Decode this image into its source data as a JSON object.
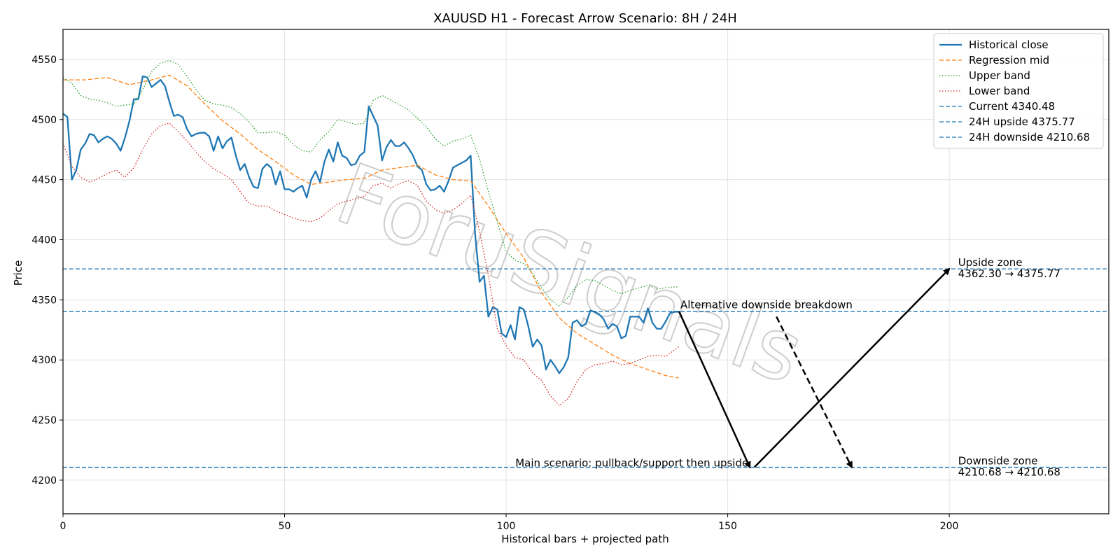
{
  "chart_data": {
    "type": "line",
    "title": "XAUUSD H1 - Forecast Arrow Scenario: 8H / 24H",
    "xlabel": "Historical bars + projected path",
    "ylabel": "Price",
    "xlim": [
      0,
      236
    ],
    "ylim": [
      4172,
      4575
    ],
    "x_ticks": [
      0,
      50,
      100,
      150,
      200
    ],
    "y_ticks": [
      4200,
      4250,
      4300,
      4350,
      4400,
      4450,
      4500,
      4550
    ],
    "grid": true,
    "legend_position": "top-right",
    "watermark": "ForuSignals",
    "colors": {
      "historical": "#1f77b4",
      "regression": "#ff7f0e",
      "upper": "#2ca02c",
      "lower": "#d62728",
      "hline": "#1f77b4",
      "arrow": "#000000"
    },
    "series": [
      {
        "name": "Historical close",
        "style": "solid",
        "x": [
          0,
          1,
          2,
          3,
          4,
          5,
          6,
          7,
          8,
          9,
          10,
          11,
          12,
          13,
          14,
          15,
          16,
          17,
          18,
          19,
          20,
          21,
          22,
          23,
          24,
          25,
          26,
          27,
          28,
          29,
          30,
          31,
          32,
          33,
          34,
          35,
          36,
          37,
          38,
          39,
          40,
          41,
          42,
          43,
          44,
          45,
          46,
          47,
          48,
          49,
          50,
          51,
          52,
          53,
          54,
          55,
          56,
          57,
          58,
          59,
          60,
          61,
          62,
          63,
          64,
          65,
          66,
          67,
          68,
          69,
          70,
          71,
          72,
          73,
          74,
          75,
          76,
          77,
          78,
          79,
          80,
          81,
          82,
          83,
          84,
          85,
          86,
          87,
          88,
          89,
          90,
          91,
          92,
          93,
          94,
          95,
          96,
          97,
          98,
          99,
          100,
          101,
          102,
          103,
          104,
          105,
          106,
          107,
          108,
          109,
          110,
          111,
          112,
          113,
          114,
          115,
          116,
          117,
          118,
          119,
          120,
          121,
          122,
          123,
          124,
          125,
          126,
          127,
          128,
          129,
          130,
          131,
          132,
          133,
          134,
          135,
          136,
          137,
          138,
          139
        ],
        "values": [
          4505,
          4502,
          4450,
          4458,
          4475,
          4480,
          4488,
          4487,
          4481,
          4484,
          4486,
          4484,
          4480,
          4474,
          4485,
          4499,
          4517,
          4517,
          4536,
          4535,
          4527,
          4530,
          4533,
          4528,
          4515,
          4503,
          4504,
          4502,
          4492,
          4486,
          4488,
          4489,
          4489,
          4486,
          4474,
          4486,
          4476,
          4482,
          4485,
          4470,
          4458,
          4463,
          4452,
          4444,
          4443,
          4459,
          4463,
          4460,
          4446,
          4457,
          4442,
          4442,
          4440,
          4443,
          4445,
          4435,
          4450,
          4457,
          4448,
          4465,
          4475,
          4465,
          4481,
          4470,
          4468,
          4462,
          4463,
          4470,
          4473,
          4511,
          4503,
          4495,
          4466,
          4477,
          4483,
          4478,
          4478,
          4481,
          4476,
          4470,
          4461,
          4458,
          4446,
          4441,
          4442,
          4445,
          4440,
          4449,
          4460,
          4462,
          4464,
          4466,
          4470,
          4405,
          4365,
          4370,
          4336,
          4344,
          4342,
          4322,
          4319,
          4329,
          4317,
          4344,
          4342,
          4328,
          4311,
          4317,
          4312,
          4292,
          4300,
          4295,
          4289,
          4294,
          4302,
          4331,
          4333,
          4328,
          4330,
          4341,
          4340,
          4338,
          4334,
          4326,
          4330,
          4328,
          4318,
          4320,
          4336,
          4336,
          4336,
          4331,
          4343,
          4331,
          4326,
          4326,
          4332,
          4339,
          4340,
          4340
        ]
      },
      {
        "name": "Regression mid",
        "style": "dashed",
        "x": [
          0,
          5,
          10,
          15,
          20,
          24,
          28,
          32,
          36,
          40,
          44,
          48,
          52,
          56,
          60,
          64,
          68,
          72,
          76,
          80,
          84,
          88,
          92,
          96,
          100,
          104,
          108,
          112,
          116,
          120,
          124,
          128,
          132,
          136,
          139
        ],
        "values": [
          4533,
          4533,
          4535,
          4529,
          4533,
          4537,
          4528,
          4513,
          4499,
          4488,
          4475,
          4465,
          4454,
          4446,
          4448,
          4450,
          4451,
          4458,
          4460,
          4462,
          4454,
          4450,
          4449,
          4428,
          4405,
          4385,
          4356,
          4335,
          4322,
          4313,
          4304,
          4297,
          4292,
          4287,
          4285
        ]
      },
      {
        "name": "Upper band",
        "style": "dotted",
        "x": [
          0,
          2,
          4,
          6,
          8,
          10,
          12,
          14,
          16,
          18,
          20,
          22,
          24,
          26,
          28,
          30,
          32,
          34,
          36,
          38,
          40,
          42,
          44,
          46,
          48,
          50,
          52,
          54,
          56,
          58,
          60,
          62,
          64,
          66,
          68,
          70,
          72,
          74,
          76,
          78,
          80,
          82,
          84,
          86,
          88,
          90,
          92,
          94,
          96,
          98,
          100,
          102,
          104,
          106,
          108,
          110,
          112,
          114,
          116,
          118,
          120,
          122,
          124,
          126,
          128,
          130,
          132,
          134,
          136,
          139
        ],
        "values": [
          4535,
          4530,
          4520,
          4517,
          4516,
          4514,
          4511,
          4512,
          4513,
          4525,
          4540,
          4547,
          4549,
          4546,
          4536,
          4525,
          4516,
          4513,
          4512,
          4510,
          4505,
          4498,
          4489,
          4489,
          4490,
          4487,
          4479,
          4474,
          4473,
          4483,
          4490,
          4500,
          4498,
          4496,
          4497,
          4516,
          4520,
          4516,
          4512,
          4508,
          4501,
          4494,
          4484,
          4478,
          4482,
          4484,
          4487,
          4467,
          4440,
          4415,
          4390,
          4383,
          4380,
          4372,
          4360,
          4350,
          4345,
          4352,
          4362,
          4367,
          4366,
          4362,
          4358,
          4355,
          4358,
          4360,
          4362,
          4359,
          4360,
          4361
        ]
      },
      {
        "name": "Lower band",
        "style": "dotted",
        "x": [
          0,
          2,
          4,
          6,
          8,
          10,
          12,
          14,
          16,
          18,
          20,
          22,
          24,
          26,
          28,
          30,
          32,
          34,
          36,
          38,
          40,
          42,
          44,
          46,
          48,
          50,
          52,
          54,
          56,
          58,
          60,
          62,
          64,
          66,
          68,
          70,
          72,
          74,
          76,
          78,
          80,
          82,
          84,
          86,
          88,
          90,
          92,
          94,
          96,
          98,
          100,
          102,
          104,
          106,
          108,
          110,
          112,
          114,
          116,
          118,
          120,
          122,
          124,
          126,
          128,
          130,
          132,
          134,
          136,
          139
        ],
        "values": [
          4480,
          4461,
          4452,
          4448,
          4451,
          4455,
          4458,
          4452,
          4460,
          4475,
          4488,
          4495,
          4497,
          4490,
          4482,
          4473,
          4465,
          4459,
          4455,
          4450,
          4440,
          4430,
          4428,
          4428,
          4424,
          4421,
          4418,
          4416,
          4415,
          4418,
          4424,
          4430,
          4432,
          4434,
          4436,
          4445,
          4447,
          4443,
          4447,
          4449,
          4445,
          4432,
          4425,
          4422,
          4425,
          4430,
          4437,
          4407,
          4370,
          4326,
          4312,
          4302,
          4300,
          4289,
          4283,
          4270,
          4262,
          4268,
          4282,
          4292,
          4296,
          4297,
          4299,
          4296,
          4297,
          4300,
          4303,
          4304,
          4303,
          4311
        ]
      }
    ],
    "hlines": [
      {
        "name": "Current 4340.48",
        "y": 4340.48
      },
      {
        "name": "24H upside 4375.77",
        "y": 4375.77
      },
      {
        "name": "24H downside 4210.68",
        "y": 4210.68
      }
    ],
    "arrows": [
      {
        "name": "main-down",
        "style": "solid",
        "from": [
          139,
          4340.48
        ],
        "to": [
          155,
          4210.68
        ]
      },
      {
        "name": "main-up",
        "style": "solid",
        "from": [
          156,
          4210.68
        ],
        "to": [
          200,
          4375.77
        ]
      },
      {
        "name": "alt-breakdown",
        "style": "dashed",
        "from": [
          161,
          4336
        ],
        "to": [
          178,
          4210.68
        ]
      }
    ],
    "annotations": {
      "alt": {
        "text": "Alternative downside breakdown",
        "x": 139,
        "y": 4340.48
      },
      "main": {
        "text": "Main scenario: pullback/support then upside",
        "x": 155,
        "y": 4210.68
      },
      "upside_zone": {
        "line1": "Upside zone",
        "line2": "4362.30 → 4375.77",
        "x": 202,
        "y": 4375.77
      },
      "downside_zone": {
        "line1": "Downside zone",
        "line2": "4210.68 → 4210.68",
        "x": 202,
        "y": 4210.68
      }
    }
  }
}
